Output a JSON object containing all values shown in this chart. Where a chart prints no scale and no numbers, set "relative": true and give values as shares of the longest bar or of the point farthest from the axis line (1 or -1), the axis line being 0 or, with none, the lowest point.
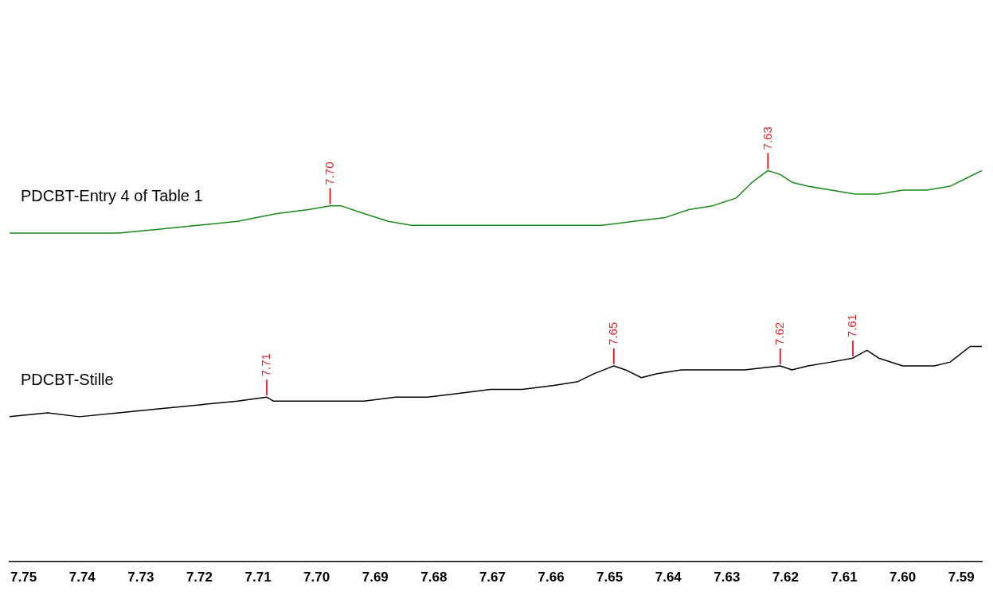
{
  "chart_data": {
    "type": "line",
    "relative": true,
    "xlim": [
      7.7524,
      7.5865
    ],
    "xticks": [
      7.75,
      7.74,
      7.73,
      7.72,
      7.71,
      {
        "value": 7.7,
        "label": "7.70"
      },
      7.69,
      7.68,
      7.67,
      7.66,
      7.65,
      7.64,
      7.63,
      7.62,
      7.61,
      {
        "value": 7.6,
        "label": "7.60"
      },
      7.59
    ],
    "series": [
      {
        "name": "PDCBT-Entry 4 of Table 1",
        "color": "#1a8a1a",
        "x": [
          7.7524,
          7.7459,
          7.7405,
          7.7338,
          7.727,
          7.7203,
          7.7135,
          7.7068,
          7.7014,
          7.6977,
          7.6959,
          7.6919,
          7.6878,
          7.6838,
          7.6784,
          7.673,
          7.6676,
          7.6622,
          7.6568,
          7.6514,
          7.6459,
          7.6405,
          7.6365,
          7.6324,
          7.6284,
          7.6257,
          7.623,
          7.6209,
          7.6189,
          7.6162,
          7.6122,
          7.6081,
          7.6041,
          7.6,
          7.5959,
          7.5919,
          7.5892,
          7.5865
        ],
        "values": [
          0.84,
          0.84,
          0.84,
          0.84,
          0.85,
          0.86,
          0.87,
          0.89,
          0.9,
          0.91,
          0.91,
          0.89,
          0.87,
          0.86,
          0.86,
          0.86,
          0.86,
          0.86,
          0.86,
          0.86,
          0.87,
          0.88,
          0.9,
          0.91,
          0.93,
          0.97,
          1,
          0.99,
          0.97,
          0.96,
          0.95,
          0.94,
          0.94,
          0.95,
          0.95,
          0.96,
          0.98,
          1
        ]
      },
      {
        "name": "PDCBT-Stille",
        "color": "#000000",
        "x": [
          7.7524,
          7.7459,
          7.7405,
          7.7338,
          7.727,
          7.7203,
          7.7135,
          7.7085,
          7.7074,
          7.7027,
          7.6973,
          7.6919,
          7.6865,
          7.6811,
          7.6757,
          7.6703,
          7.6649,
          7.6595,
          7.6554,
          7.6527,
          7.6493,
          7.6473,
          7.6446,
          7.6419,
          7.6378,
          7.6324,
          7.627,
          7.6209,
          7.6189,
          7.6162,
          7.6122,
          7.6085,
          7.6061,
          7.6041,
          7.6,
          7.5946,
          7.5919,
          7.5885,
          7.5865
        ],
        "values": [
          0.37,
          0.38,
          0.37,
          0.38,
          0.39,
          0.4,
          0.41,
          0.42,
          0.41,
          0.41,
          0.41,
          0.41,
          0.42,
          0.42,
          0.43,
          0.44,
          0.44,
          0.45,
          0.46,
          0.48,
          0.5,
          0.49,
          0.47,
          0.48,
          0.49,
          0.49,
          0.49,
          0.5,
          0.49,
          0.5,
          0.51,
          0.52,
          0.54,
          0.52,
          0.5,
          0.5,
          0.51,
          0.55,
          0.55
        ]
      }
    ],
    "annotations": [
      {
        "text": "7.70",
        "x": 7.6977,
        "y": 0.91
      },
      {
        "text": "7.63",
        "x": 7.623,
        "y": 1
      },
      {
        "text": "7.71",
        "x": 7.7085,
        "y": 0.42
      },
      {
        "text": "7.65",
        "x": 7.6493,
        "y": 0.5
      },
      {
        "text": "7.62",
        "x": 7.6209,
        "y": 0.5
      },
      {
        "text": "7.61",
        "x": 7.6085,
        "y": 0.52
      }
    ]
  }
}
